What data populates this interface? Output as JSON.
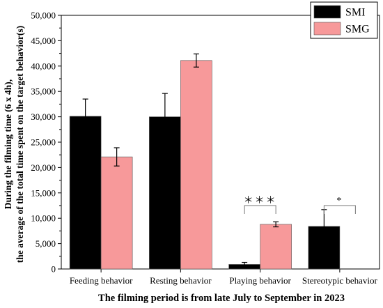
{
  "chart_data": {
    "type": "bar",
    "title": "",
    "xlabel": "The filming period is from late July to September in 2023",
    "ylabel_lines": [
      "During the filming time (6 x 4h),",
      "the average of the total time spent on the target behavior(s)"
    ],
    "ylim": [
      0,
      50000
    ],
    "y_ticks": [
      0,
      5000,
      10000,
      15000,
      20000,
      25000,
      30000,
      35000,
      40000,
      45000,
      50000
    ],
    "y_tick_labels": [
      "0",
      "5,000",
      "10,000",
      "15,000",
      "20,000",
      "25,000",
      "30,000",
      "35,000",
      "40,000",
      "45,000",
      "50,000"
    ],
    "categories": [
      "Feeding behavior",
      "Resting behavior",
      "Playing behavior",
      "Stereotypic behavior"
    ],
    "series": [
      {
        "name": "SMI",
        "color": "#000000",
        "values": [
          30100,
          30000,
          900,
          8400
        ],
        "errors": [
          3400,
          4600,
          400,
          3300
        ]
      },
      {
        "name": "SMG",
        "color": "#f7999a",
        "values": [
          22100,
          41100,
          8800,
          0
        ],
        "errors": [
          1800,
          1300,
          500,
          0
        ]
      }
    ],
    "legend": {
      "placement": "top-right",
      "labels": [
        "SMI",
        "SMG"
      ]
    },
    "significance": [
      {
        "category_index": 2,
        "label": "＊＊＊",
        "bracket_y": 12500
      },
      {
        "category_index": 3,
        "label": "*",
        "bracket_y": 12500
      }
    ],
    "grid": false
  }
}
